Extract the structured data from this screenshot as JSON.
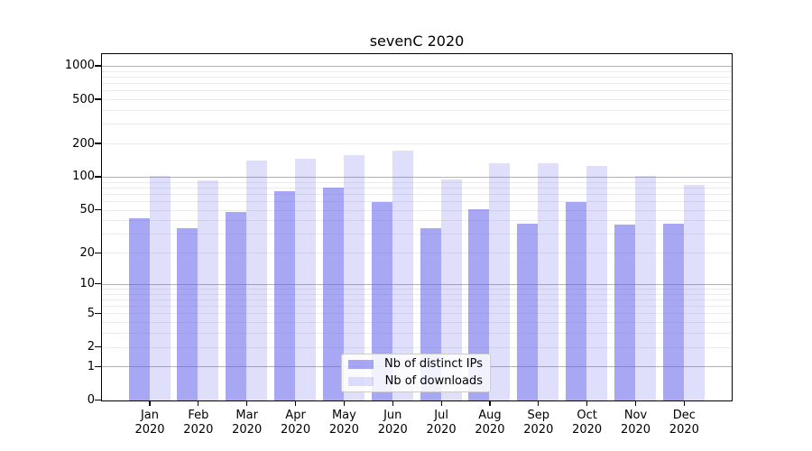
{
  "title": "sevenC 2020",
  "chart_data": {
    "type": "bar",
    "title": "sevenC 2020",
    "categories": [
      "Jan 2020",
      "Feb 2020",
      "Mar 2020",
      "Apr 2020",
      "May 2020",
      "Jun 2020",
      "Jul 2020",
      "Aug 2020",
      "Sep 2020",
      "Oct 2020",
      "Nov 2020",
      "Dec 2020"
    ],
    "series": [
      {
        "name": "Nb of distinct IPs",
        "values": [
          42,
          34,
          48,
          74,
          80,
          60,
          34,
          51,
          38,
          60,
          37,
          38
        ]
      },
      {
        "name": "Nb of downloads",
        "values": [
          103,
          93,
          142,
          147,
          158,
          173,
          96,
          133,
          133,
          127,
          102,
          86
        ]
      }
    ],
    "yscale": "log1p",
    "y_tick_values": [
      0,
      1,
      2,
      5,
      10,
      20,
      50,
      100,
      200,
      500,
      1000
    ],
    "y_tick_labels": [
      "0",
      "1",
      "2",
      "5",
      "10",
      "20",
      "50",
      "100",
      "200",
      "500",
      "1000"
    ],
    "ylim": [
      0,
      1270
    ],
    "grid": true,
    "legend_position": "lower center"
  },
  "legend": {
    "items": [
      {
        "label": "Nb of distinct IPs",
        "swatch": "bar_dark"
      },
      {
        "label": "Nb of downloads",
        "swatch": "bar_light"
      }
    ]
  },
  "colors": {
    "bar_dark": "rgba(95,95,235,0.55)",
    "bar_light": "rgba(95,95,235,0.20)",
    "grid_major": "#b2b2b2",
    "grid_minor": "#ebebeb",
    "spine": "#000000",
    "text": "#000000",
    "legend_border": "#cccccc"
  }
}
